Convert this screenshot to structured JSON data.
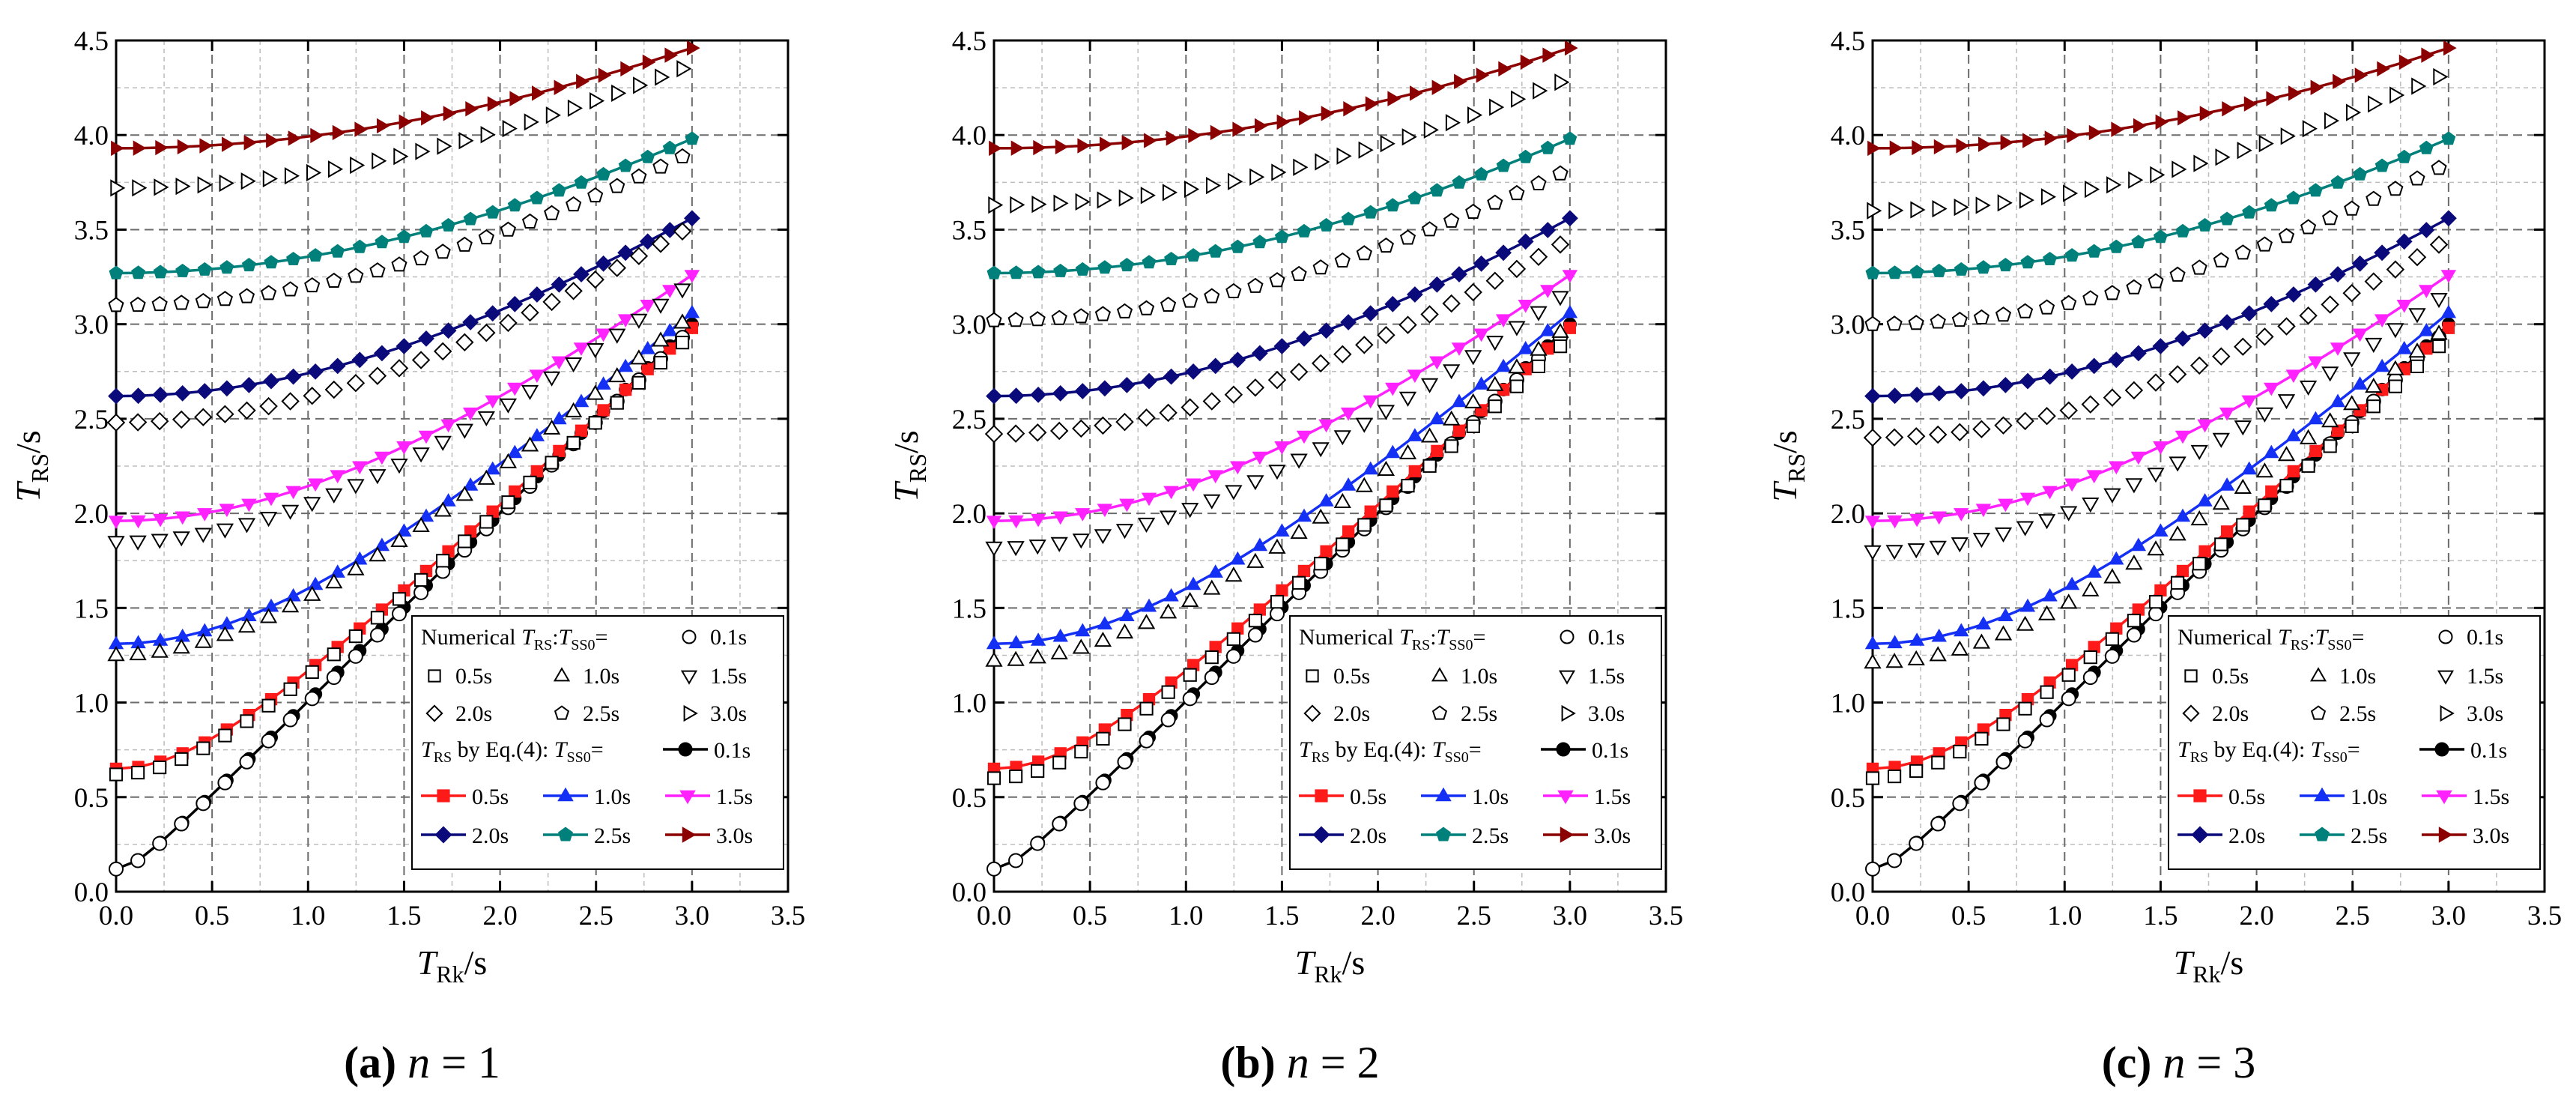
{
  "figure": {
    "panels": [
      {
        "letter": "(a)",
        "n_var": "n",
        "eq": "=",
        "n_value": "1"
      },
      {
        "letter": "(b)",
        "n_var": "n",
        "eq": "=",
        "n_value": "2"
      },
      {
        "letter": "(c)",
        "n_var": "n",
        "eq": "=",
        "n_value": "3"
      }
    ],
    "axis_labels": {
      "x_main": "T",
      "x_sub": "Rk",
      "x_unit": "/s",
      "y_main": "T",
      "y_sub": "RS",
      "y_unit": "/s"
    },
    "legend": {
      "numerical_prefix": "Numerical ",
      "t_main": "T",
      "rs_sub": "RS",
      "ss0_sub": "SS0",
      "colon": ":",
      "equals": "=",
      "eq_text": " by Eq.(4):  ",
      "dash": "—"
    }
  },
  "colors": {
    "0.1s": "#000000",
    "0.5s": "#ff1a1a",
    "1.0s": "#1530f5",
    "1.5s": "#ff22ff",
    "2.0s": "#0a0a7a",
    "2.5s": "#00807a",
    "3.0s": "#8b0000",
    "grid_major": "#6b6b6b",
    "grid_minor": "#bdbdbd"
  },
  "chart_data": [
    {
      "type": "line",
      "panel": "(a)",
      "n": 1,
      "xlabel": "TRk/s",
      "ylabel": "TRS/s",
      "xlim": [
        0,
        3.5
      ],
      "ylim": [
        0,
        4.5
      ],
      "xticks": [
        "0.0",
        "0.5",
        "1.0",
        "1.5",
        "2.0",
        "2.5",
        "3.0",
        "3.5"
      ],
      "yticks": [
        "0.0",
        "0.5",
        "1.0",
        "1.5",
        "2.0",
        "2.5",
        "3.0",
        "3.5",
        "4.0",
        "4.5"
      ],
      "grid": true,
      "legend_position": "bottom-right",
      "series": [
        {
          "name": "0.1s",
          "kind": "formula",
          "endpoint": 3.0,
          "color": "#000000",
          "marker": "circle"
        },
        {
          "name": "0.5s",
          "kind": "formula",
          "endpoint": 2.98,
          "color": "#ff1a1a",
          "marker": "square"
        },
        {
          "name": "1.0s",
          "kind": "formula",
          "endpoint": 3.06,
          "color": "#1530f5",
          "marker": "triangle-up"
        },
        {
          "name": "1.5s",
          "kind": "formula",
          "endpoint": 3.26,
          "color": "#ff22ff",
          "marker": "triangle-down"
        },
        {
          "name": "2.0s",
          "kind": "formula",
          "endpoint": 3.56,
          "color": "#0a0a7a",
          "marker": "diamond"
        },
        {
          "name": "2.5s",
          "kind": "formula",
          "endpoint": 3.98,
          "color": "#00807a",
          "marker": "pentagon"
        },
        {
          "name": "3.0s",
          "kind": "formula",
          "endpoint": 4.46,
          "color": "#8b0000",
          "marker": "triangle-right"
        },
        {
          "name": "0.1s",
          "kind": "numerical",
          "start": 0.12,
          "endpoint": 2.98,
          "marker": "circle"
        },
        {
          "name": "0.5s",
          "kind": "numerical",
          "start": 0.62,
          "endpoint": 2.95,
          "marker": "square"
        },
        {
          "name": "1.0s",
          "kind": "numerical",
          "start": 1.25,
          "endpoint": 3.05,
          "marker": "triangle-up"
        },
        {
          "name": "1.5s",
          "kind": "numerical",
          "start": 1.85,
          "endpoint": 3.22,
          "marker": "triangle-down"
        },
        {
          "name": "2.0s",
          "kind": "numerical",
          "start": 2.48,
          "endpoint": 3.52,
          "marker": "diamond"
        },
        {
          "name": "2.5s",
          "kind": "numerical",
          "start": 3.1,
          "endpoint": 3.91,
          "marker": "pentagon"
        },
        {
          "name": "3.0s",
          "kind": "numerical",
          "start": 3.72,
          "endpoint": 4.37,
          "marker": "triangle-right"
        }
      ]
    },
    {
      "type": "line",
      "panel": "(b)",
      "n": 2,
      "xlabel": "TRk/s",
      "ylabel": "TRS/s",
      "xlim": [
        0,
        3.5
      ],
      "ylim": [
        0,
        4.5
      ],
      "xticks": [
        "0.0",
        "0.5",
        "1.0",
        "1.5",
        "2.0",
        "2.5",
        "3.0",
        "3.5"
      ],
      "yticks": [
        "0.0",
        "0.5",
        "1.0",
        "1.5",
        "2.0",
        "2.5",
        "3.0",
        "3.5",
        "4.0",
        "4.5"
      ],
      "grid": true,
      "legend_position": "bottom-right",
      "series": [
        {
          "name": "0.1s",
          "kind": "formula",
          "endpoint": 3.0,
          "color": "#000000",
          "marker": "circle"
        },
        {
          "name": "0.5s",
          "kind": "formula",
          "endpoint": 2.98,
          "color": "#ff1a1a",
          "marker": "square"
        },
        {
          "name": "1.0s",
          "kind": "formula",
          "endpoint": 3.06,
          "color": "#1530f5",
          "marker": "triangle-up"
        },
        {
          "name": "1.5s",
          "kind": "formula",
          "endpoint": 3.26,
          "color": "#ff22ff",
          "marker": "triangle-down"
        },
        {
          "name": "2.0s",
          "kind": "formula",
          "endpoint": 3.56,
          "color": "#0a0a7a",
          "marker": "diamond"
        },
        {
          "name": "2.5s",
          "kind": "formula",
          "endpoint": 3.98,
          "color": "#00807a",
          "marker": "pentagon"
        },
        {
          "name": "3.0s",
          "kind": "formula",
          "endpoint": 4.46,
          "color": "#8b0000",
          "marker": "triangle-right"
        },
        {
          "name": "0.1s",
          "kind": "numerical",
          "start": 0.12,
          "endpoint": 2.98,
          "marker": "circle"
        },
        {
          "name": "0.5s",
          "kind": "numerical",
          "start": 0.6,
          "endpoint": 2.93,
          "marker": "square"
        },
        {
          "name": "1.0s",
          "kind": "numerical",
          "start": 1.22,
          "endpoint": 3.0,
          "marker": "triangle-up"
        },
        {
          "name": "1.5s",
          "kind": "numerical",
          "start": 1.82,
          "endpoint": 3.18,
          "marker": "triangle-down"
        },
        {
          "name": "2.0s",
          "kind": "numerical",
          "start": 2.42,
          "endpoint": 3.45,
          "marker": "diamond"
        },
        {
          "name": "2.5s",
          "kind": "numerical",
          "start": 3.02,
          "endpoint": 3.82,
          "marker": "pentagon"
        },
        {
          "name": "3.0s",
          "kind": "numerical",
          "start": 3.63,
          "endpoint": 4.3,
          "marker": "triangle-right"
        }
      ]
    },
    {
      "type": "line",
      "panel": "(c)",
      "n": 3,
      "xlabel": "TRk/s",
      "ylabel": "TRS/s",
      "xlim": [
        0,
        3.5
      ],
      "ylim": [
        0,
        4.5
      ],
      "xticks": [
        "0.0",
        "0.5",
        "1.0",
        "1.5",
        "2.0",
        "2.5",
        "3.0",
        "3.5"
      ],
      "yticks": [
        "0.0",
        "0.5",
        "1.0",
        "1.5",
        "2.0",
        "2.5",
        "3.0",
        "3.5",
        "4.0",
        "4.5"
      ],
      "grid": true,
      "legend_position": "bottom-right",
      "series": [
        {
          "name": "0.1s",
          "kind": "formula",
          "endpoint": 3.0,
          "color": "#000000",
          "marker": "circle"
        },
        {
          "name": "0.5s",
          "kind": "formula",
          "endpoint": 2.98,
          "color": "#ff1a1a",
          "marker": "square"
        },
        {
          "name": "1.0s",
          "kind": "formula",
          "endpoint": 3.06,
          "color": "#1530f5",
          "marker": "triangle-up"
        },
        {
          "name": "1.5s",
          "kind": "formula",
          "endpoint": 3.26,
          "color": "#ff22ff",
          "marker": "triangle-down"
        },
        {
          "name": "2.0s",
          "kind": "formula",
          "endpoint": 3.56,
          "color": "#0a0a7a",
          "marker": "diamond"
        },
        {
          "name": "2.5s",
          "kind": "formula",
          "endpoint": 3.98,
          "color": "#00807a",
          "marker": "pentagon"
        },
        {
          "name": "3.0s",
          "kind": "formula",
          "endpoint": 4.46,
          "color": "#8b0000",
          "marker": "triangle-right"
        },
        {
          "name": "0.1s",
          "kind": "numerical",
          "start": 0.12,
          "endpoint": 2.98,
          "marker": "circle"
        },
        {
          "name": "0.5s",
          "kind": "numerical",
          "start": 0.6,
          "endpoint": 2.93,
          "marker": "square"
        },
        {
          "name": "1.0s",
          "kind": "numerical",
          "start": 1.21,
          "endpoint": 2.99,
          "marker": "triangle-up"
        },
        {
          "name": "1.5s",
          "kind": "numerical",
          "start": 1.8,
          "endpoint": 3.17,
          "marker": "triangle-down"
        },
        {
          "name": "2.0s",
          "kind": "numerical",
          "start": 2.4,
          "endpoint": 3.45,
          "marker": "diamond"
        },
        {
          "name": "2.5s",
          "kind": "numerical",
          "start": 3.0,
          "endpoint": 3.85,
          "marker": "pentagon"
        },
        {
          "name": "3.0s",
          "kind": "numerical",
          "start": 3.6,
          "endpoint": 4.33,
          "marker": "triangle-right"
        }
      ]
    }
  ]
}
